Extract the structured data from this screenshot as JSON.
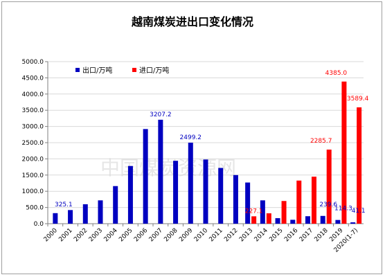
{
  "chart_data": {
    "type": "bar",
    "title": "越南煤炭进出口变化情况",
    "watermark": "中国煤炭资源网",
    "categories": [
      "2000",
      "2001",
      "2002",
      "2003",
      "2004",
      "2005",
      "2006",
      "2007",
      "2008",
      "2009",
      "2010",
      "2011",
      "2012",
      "2013",
      "2014",
      "2015",
      "2016",
      "2017",
      "2018",
      "2019",
      "2020(1-7)"
    ],
    "ylim": [
      0,
      5000
    ],
    "yticks": [
      "0.0",
      "500.0",
      "1000.0",
      "1500.0",
      "2000.0",
      "2500.0",
      "3000.0",
      "3500.0",
      "4000.0",
      "4500.0",
      "5000.0"
    ],
    "legend_position": "top-left",
    "series": [
      {
        "name": "出口/万吨",
        "color": "#0000c0",
        "values": [
          325.1,
          420,
          600,
          720,
          1160,
          1780,
          2920,
          3207.2,
          1940,
          2499.2,
          1980,
          1720,
          1500,
          1270,
          720,
          170,
          120,
          230,
          239.6,
          114.3,
          41.1
        ],
        "labels": {
          "0": "325.1",
          "7": "3207.2",
          "9": "2499.2",
          "18": "239.6",
          "19": "114.3",
          "20": "41.1"
        }
      },
      {
        "name": "进口/万吨",
        "color": "#ff0000",
        "values": [
          null,
          null,
          null,
          null,
          null,
          null,
          null,
          null,
          null,
          null,
          null,
          null,
          null,
          227.1,
          320,
          700,
          1330,
          1450,
          2285.7,
          4385.0,
          3589.4
        ],
        "labels": {
          "13": "227.1",
          "18": "2285.7",
          "19": "4385.0",
          "20": "3589.4"
        }
      }
    ]
  }
}
